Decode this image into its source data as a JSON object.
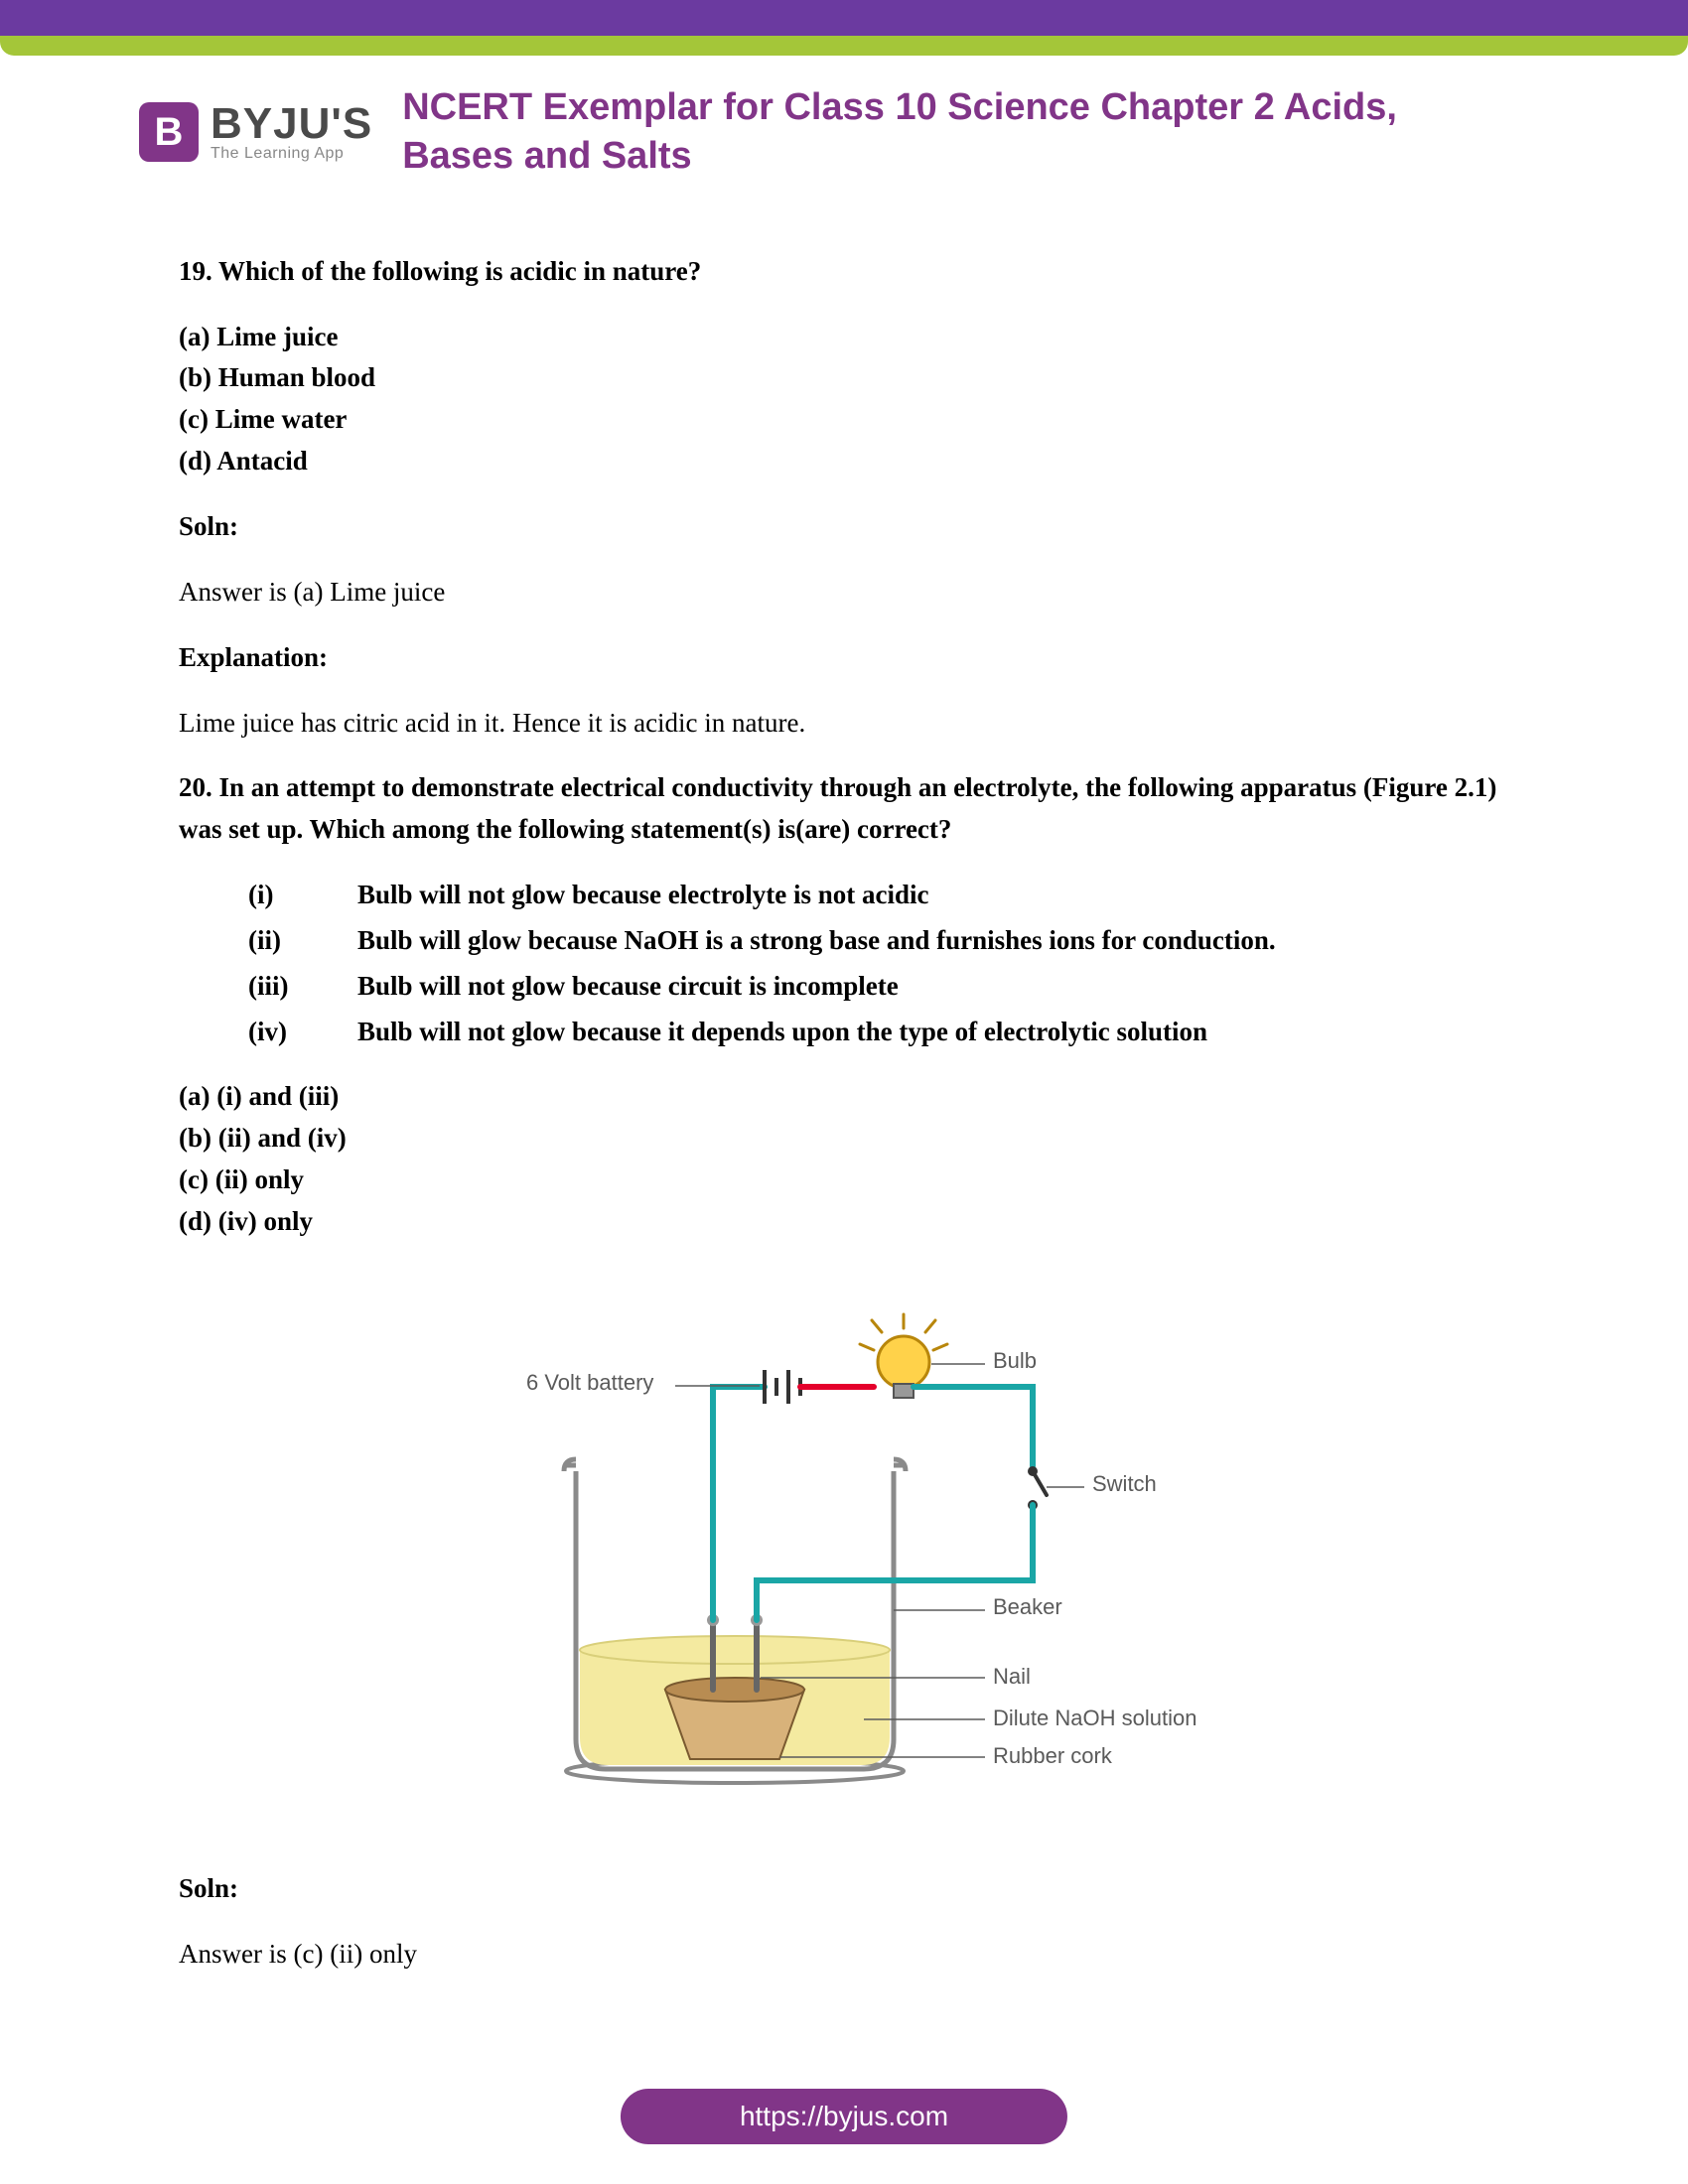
{
  "brand": {
    "logo_letter": "B",
    "name": "BYJU'S",
    "tagline": "The Learning App"
  },
  "title": "NCERT Exemplar for Class 10 Science Chapter 2 Acids, Bases and Salts",
  "q19": {
    "prompt": "19. Which of the following is acidic in nature?",
    "a": "(a) Lime juice",
    "b": "(b) Human blood",
    "c": "(c) Lime water",
    "d": "(d) Antacid",
    "soln_label": "Soln:",
    "answer": "Answer is (a) Lime juice",
    "expl_label": "Explanation:",
    "expl": "Lime juice has citric acid in it. Hence it is acidic in nature."
  },
  "q20": {
    "prompt": "20. In an attempt to demonstrate electrical conductivity through an electrolyte, the following apparatus (Figure 2.1) was set up. Which among the following statement(s) is(are) correct?",
    "roman": [
      {
        "n": "(i)",
        "t": "Bulb will not glow because electrolyte is not acidic"
      },
      {
        "n": "(ii)",
        "t": "Bulb will glow because NaOH is a strong base and furnishes ions for conduction."
      },
      {
        "n": "(iii)",
        "t": "Bulb will not glow because circuit is incomplete"
      },
      {
        "n": "(iv)",
        "t": "Bulb will not glow because it depends upon the type of electrolytic solution"
      }
    ],
    "a": "(a) (i) and (iii)",
    "b": "(b) (ii) and (iv)",
    "c": "(c) (ii) only",
    "d": "(d) (iv) only",
    "soln_label": "Soln:",
    "answer": "Answer is (c) (ii) only"
  },
  "diagram": {
    "battery": "6 Volt battery",
    "bulb": "Bulb",
    "switch": "Switch",
    "beaker": "Beaker",
    "nail": "Nail",
    "naoh": "Dilute NaOH solution",
    "cork": "Rubber cork",
    "colors": {
      "wire": "#1aa6a6",
      "hotwire": "#e4002b",
      "beaker_stroke": "#8a8a8a",
      "solution": "#f4eaa0",
      "cork_top": "#d8b27a",
      "cork_bot": "#b88c52",
      "bulb": "#ffd24a",
      "text": "#5a5a5a"
    }
  },
  "footer": "https://byjus.com"
}
